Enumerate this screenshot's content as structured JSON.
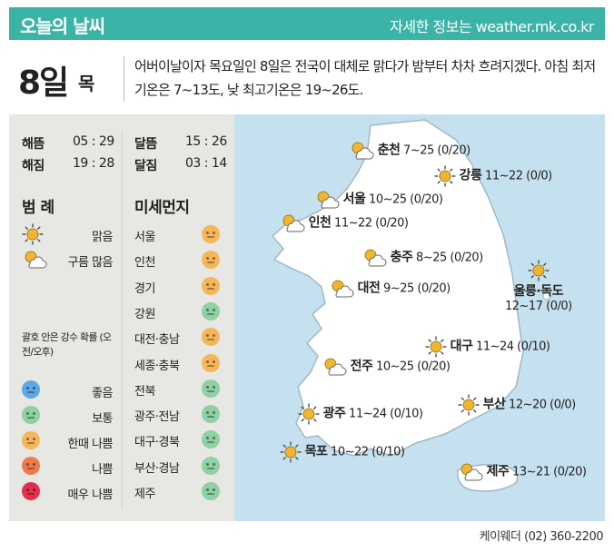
{
  "header": {
    "title": "오늘의 날씨",
    "site": "자세한 정보는 weather.mk.co.kr"
  },
  "date": {
    "day": "8일",
    "weekday": "목"
  },
  "summary": "어버이날이자 목요일인 8일은 전국이 대체로 맑다가 밤부터 차차 흐려지겠다. 아침 최저기온은 7~13도, 낮 최고기온은 19~26도.",
  "sun": [
    {
      "label": "해뜸",
      "value": "05 : 29"
    },
    {
      "label": "해짐",
      "value": "19 : 28"
    }
  ],
  "moon": [
    {
      "label": "달뜸",
      "value": "15 : 26"
    },
    {
      "label": "달짐",
      "value": "03 : 14"
    }
  ],
  "legend": {
    "title": "범 례",
    "items": [
      {
        "label": "맑음",
        "icon": "sun-icon"
      },
      {
        "label": "구름 많음",
        "icon": "partly-cloudy-icon"
      }
    ],
    "note": "괄호 안은 강수 확률 (오전/오후)",
    "dust_levels": [
      {
        "label": "좋음",
        "color": "#5aa8e6"
      },
      {
        "label": "보통",
        "color": "#8fd0a4"
      },
      {
        "label": "한때 나쁨",
        "color": "#f5b65a"
      },
      {
        "label": "나쁨",
        "color": "#ef7a4f"
      },
      {
        "label": "매우 나쁨",
        "color": "#e2304b"
      }
    ]
  },
  "dust": {
    "title": "미세먼지",
    "regions": [
      {
        "name": "서울",
        "level": "한때 나쁨",
        "color": "#f5b65a"
      },
      {
        "name": "인천",
        "level": "한때 나쁨",
        "color": "#f5b65a"
      },
      {
        "name": "경기",
        "level": "한때 나쁨",
        "color": "#f5b65a"
      },
      {
        "name": "강원",
        "level": "보통",
        "color": "#8fd0a4"
      },
      {
        "name": "대전·충남",
        "level": "한때 나쁨",
        "color": "#f5b65a"
      },
      {
        "name": "세종·충북",
        "level": "한때 나쁨",
        "color": "#f5b65a"
      },
      {
        "name": "전북",
        "level": "보통",
        "color": "#8fd0a4"
      },
      {
        "name": "광주·전남",
        "level": "보통",
        "color": "#8fd0a4"
      },
      {
        "name": "대구·경북",
        "level": "보통",
        "color": "#8fd0a4"
      },
      {
        "name": "부산·경남",
        "level": "보통",
        "color": "#8fd0a4"
      },
      {
        "name": "제주",
        "level": "보통",
        "color": "#8fd0a4"
      }
    ]
  },
  "cities": [
    {
      "name": "춘천",
      "temp": "7~25",
      "rain": "(0/20)",
      "icon": "partly-cloudy-icon"
    },
    {
      "name": "강릉",
      "temp": "11~22",
      "rain": "(0/0)",
      "icon": "sun-icon"
    },
    {
      "name": "서울",
      "temp": "10~25",
      "rain": "(0/20)",
      "icon": "partly-cloudy-icon"
    },
    {
      "name": "인천",
      "temp": "11~22",
      "rain": "(0/20)",
      "icon": "partly-cloudy-icon"
    },
    {
      "name": "충주",
      "temp": "8~25",
      "rain": "(0/20)",
      "icon": "partly-cloudy-icon"
    },
    {
      "name": "대전",
      "temp": "9~25",
      "rain": "(0/20)",
      "icon": "partly-cloudy-icon"
    },
    {
      "name": "울릉·독도",
      "temp": "12~17",
      "rain": "(0/0)",
      "icon": "sun-icon"
    },
    {
      "name": "대구",
      "temp": "11~24",
      "rain": "(0/10)",
      "icon": "sun-icon"
    },
    {
      "name": "전주",
      "temp": "10~25",
      "rain": "(0/20)",
      "icon": "partly-cloudy-icon"
    },
    {
      "name": "광주",
      "temp": "11~24",
      "rain": "(0/10)",
      "icon": "sun-icon"
    },
    {
      "name": "부산",
      "temp": "12~20",
      "rain": "(0/0)",
      "icon": "sun-icon"
    },
    {
      "name": "목포",
      "temp": "10~22",
      "rain": "(0/10)",
      "icon": "sun-icon"
    },
    {
      "name": "제주",
      "temp": "13~21",
      "rain": "(0/20)",
      "icon": "partly-cloudy-icon"
    }
  ],
  "footer": "케이웨더 (02) 360-2200",
  "colors": {
    "accent": "#3bb3a6",
    "sea": "#c5e1ef",
    "land": "#ffffff",
    "panel": "#e7e7e3"
  }
}
